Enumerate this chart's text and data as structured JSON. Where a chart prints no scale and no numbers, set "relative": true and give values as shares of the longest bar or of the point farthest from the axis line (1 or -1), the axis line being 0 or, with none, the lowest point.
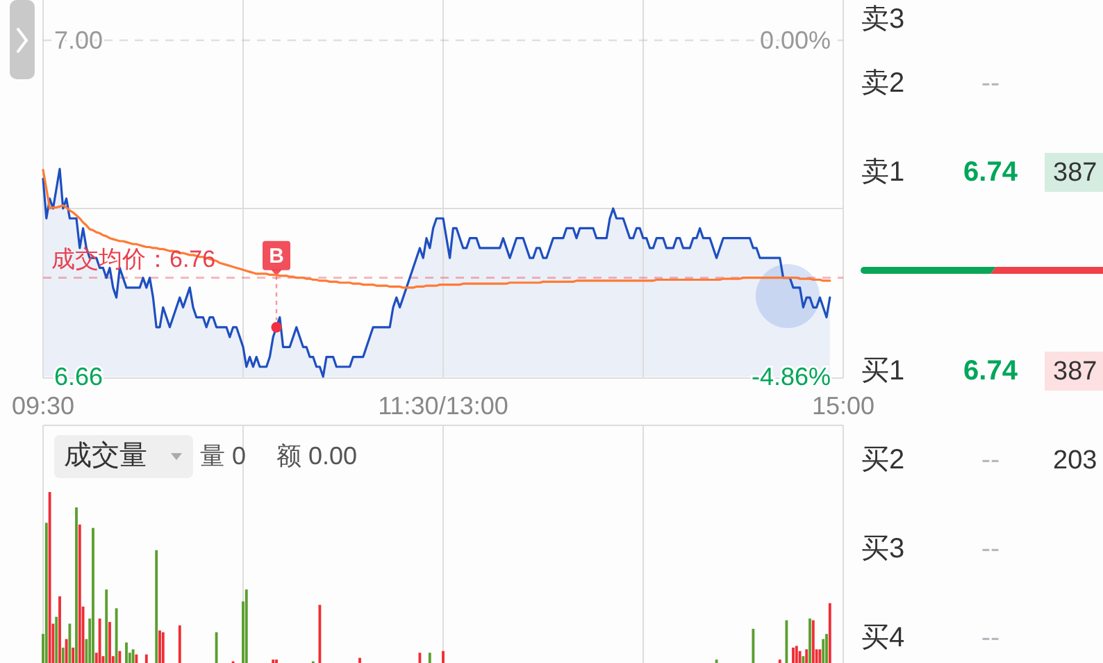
{
  "chart_data": [
    {
      "type": "line",
      "categories": [
        "09:30",
        null,
        null,
        null,
        null,
        null,
        null,
        null,
        null,
        null,
        null,
        null,
        null,
        null,
        null,
        null,
        null,
        null,
        null,
        null,
        null,
        null,
        null,
        null,
        null,
        null,
        null,
        null,
        null,
        null,
        null,
        null,
        null,
        null,
        null,
        null,
        null,
        null,
        null,
        null,
        null,
        null,
        null,
        null,
        null,
        null,
        null,
        null,
        null,
        null,
        null,
        null,
        null,
        null,
        null,
        null,
        null,
        null,
        null,
        null,
        null,
        null,
        null,
        null,
        null,
        null,
        null,
        null,
        null,
        null,
        null,
        null,
        null,
        null,
        null,
        null,
        null,
        null,
        null,
        null,
        null,
        null,
        null,
        null,
        null,
        null,
        null,
        null,
        null,
        null,
        null,
        null,
        null,
        null,
        null,
        null,
        null,
        null,
        null,
        null,
        null,
        null,
        null,
        null,
        null,
        null,
        null,
        null,
        null,
        null,
        null,
        null,
        null,
        null,
        null,
        null,
        null,
        null,
        null,
        null,
        "11:30/13:00",
        null,
        null,
        null,
        null,
        null,
        null,
        null,
        null,
        null,
        null,
        null,
        null,
        null,
        null,
        null,
        null,
        null,
        null,
        null,
        null,
        null,
        null,
        null,
        null,
        null,
        null,
        null,
        null,
        null,
        null,
        null,
        null,
        null,
        null,
        null,
        null,
        null,
        null,
        null,
        null,
        null,
        null,
        null,
        null,
        null,
        null,
        null,
        null,
        null,
        null,
        null,
        null,
        null,
        null,
        null,
        null,
        null,
        null,
        null,
        null,
        null,
        null,
        null,
        null,
        null,
        null,
        null,
        null,
        null,
        null,
        null,
        null,
        null,
        null,
        null,
        null,
        null,
        null,
        null,
        null,
        null,
        null,
        null,
        null,
        null,
        null,
        null,
        null,
        null,
        null,
        null,
        null,
        null,
        null,
        null,
        null,
        null,
        null,
        null,
        null,
        null,
        null,
        null,
        null,
        null,
        null,
        null,
        null,
        null,
        null,
        null,
        null,
        null,
        null,
        null,
        null,
        null,
        null,
        null,
        "15:00"
      ],
      "ylim": [
        6.66,
        7.0
      ],
      "yticks": [
        6.66,
        {
          "value": 6.83,
          "label": null
        },
        {
          "value": 7.0,
          "label": "7.00"
        }
      ],
      "y2lim": [
        -4.86,
        0
      ],
      "y2ticks": [
        {
          "value": -4.86,
          "label": "-4.86%"
        },
        {
          "value": 0,
          "label": "0.00%"
        }
      ],
      "grid": true,
      "ref_lines": [
        {
          "axis": "y",
          "value": 7.0,
          "color": "#a5b4c6",
          "line_style": "dashed"
        },
        {
          "axis": "y",
          "value": 6.76,
          "label": "成交均价：6.76",
          "color": "#e8404c",
          "line_style": "dashed"
        }
      ],
      "series": [
        {
          "type": "area",
          "color": "#1e4fc0",
          "values": [
            6.86,
            6.82,
            6.84,
            6.83,
            6.85,
            6.87,
            6.83,
            6.84,
            6.82,
            6.82,
            6.82,
            6.79,
            6.81,
            6.79,
            6.78,
            6.78,
            6.78,
            6.77,
            6.77,
            6.76,
            6.77,
            6.75,
            6.74,
            6.77,
            6.76,
            6.75,
            6.75,
            6.75,
            6.75,
            6.75,
            6.76,
            6.75,
            6.76,
            6.74,
            6.71,
            6.71,
            6.73,
            6.72,
            6.71,
            6.72,
            6.73,
            6.74,
            6.73,
            6.74,
            6.75,
            6.73,
            6.72,
            6.72,
            6.72,
            6.71,
            6.72,
            6.72,
            6.71,
            6.71,
            6.71,
            6.71,
            6.7,
            6.71,
            6.71,
            6.7,
            6.69,
            6.67,
            6.68,
            6.67,
            6.68,
            6.67,
            6.67,
            6.67,
            6.68,
            6.7,
            6.71,
            6.72,
            6.69,
            6.69,
            6.69,
            6.7,
            6.71,
            6.7,
            6.69,
            6.69,
            6.68,
            6.68,
            6.67,
            6.67,
            6.66,
            6.68,
            6.68,
            6.68,
            6.67,
            6.67,
            6.67,
            6.67,
            6.67,
            6.68,
            6.68,
            6.68,
            6.68,
            6.69,
            6.7,
            6.71,
            6.71,
            6.71,
            6.71,
            6.71,
            6.71,
            6.73,
            6.74,
            6.73,
            6.74,
            6.75,
            6.76,
            6.77,
            6.78,
            6.79,
            6.78,
            6.8,
            6.79,
            6.81,
            6.82,
            6.82,
            6.82,
            6.8,
            6.78,
            6.81,
            6.81,
            6.8,
            6.79,
            6.79,
            6.8,
            6.8,
            6.8,
            6.79,
            6.79,
            6.79,
            6.79,
            6.79,
            6.79,
            6.79,
            6.8,
            6.79,
            6.78,
            6.79,
            6.8,
            6.8,
            6.8,
            6.79,
            6.78,
            6.78,
            6.79,
            6.79,
            6.78,
            6.78,
            6.79,
            6.8,
            6.8,
            6.8,
            6.8,
            6.81,
            6.81,
            6.81,
            6.8,
            6.81,
            6.81,
            6.81,
            6.81,
            6.81,
            6.8,
            6.8,
            6.8,
            6.8,
            6.82,
            6.83,
            6.82,
            6.82,
            6.82,
            6.81,
            6.8,
            6.8,
            6.81,
            6.81,
            6.8,
            6.8,
            6.79,
            6.79,
            6.8,
            6.8,
            6.8,
            6.79,
            6.79,
            6.79,
            6.8,
            6.8,
            6.79,
            6.79,
            6.79,
            6.8,
            6.8,
            6.81,
            6.8,
            6.8,
            6.8,
            6.79,
            6.78,
            6.79,
            6.8,
            6.8,
            6.8,
            6.8,
            6.8,
            6.8,
            6.8,
            6.8,
            6.8,
            6.79,
            6.79,
            6.78,
            6.78,
            6.78,
            6.78,
            6.78,
            6.78,
            6.78,
            6.76,
            6.76,
            6.76,
            6.75,
            6.75,
            6.75,
            6.73,
            6.74,
            6.74,
            6.73,
            6.73,
            6.74,
            6.73,
            6.72,
            6.74,
            null,
            null,
            null,
            null
          ]
        },
        {
          "type": "line",
          "color": "#ff7a35",
          "values": [
            6.869,
            6.85,
            6.83,
            6.831,
            6.831,
            6.832,
            6.833,
            6.831,
            6.828,
            6.826,
            6.823,
            6.82,
            6.816,
            6.813,
            6.809,
            6.808,
            6.806,
            6.805,
            6.803,
            6.802,
            6.8,
            6.799,
            6.798,
            6.797,
            6.797,
            6.796,
            6.795,
            6.794,
            6.794,
            6.793,
            6.792,
            6.791,
            6.791,
            6.79,
            6.79,
            6.789,
            6.789,
            6.788,
            6.787,
            6.787,
            6.786,
            6.785,
            6.785,
            6.784,
            6.783,
            6.783,
            6.782,
            6.781,
            6.781,
            6.78,
            6.779,
            6.778,
            6.777,
            6.775,
            6.774,
            6.773,
            6.772,
            6.771,
            6.77,
            6.769,
            6.768,
            6.767,
            6.766,
            6.765,
            6.764,
            6.764,
            6.764,
            6.764,
            6.763,
            6.763,
            6.763,
            6.762,
            6.762,
            6.762,
            6.761,
            6.761,
            6.76,
            6.76,
            6.76,
            6.759,
            6.759,
            6.758,
            6.758,
            6.757,
            6.757,
            6.757,
            6.756,
            6.756,
            6.756,
            6.755,
            6.755,
            6.755,
            6.755,
            6.754,
            6.754,
            6.754,
            6.753,
            6.753,
            6.753,
            6.753,
            6.752,
            6.752,
            6.752,
            6.752,
            6.751,
            6.751,
            6.751,
            6.751,
            6.75,
            6.75,
            6.75,
            6.75,
            6.751,
            6.751,
            6.751,
            6.752,
            6.752,
            6.752,
            6.752,
            6.753,
            6.753,
            6.753,
            6.753,
            6.753,
            6.753,
            6.753,
            6.754,
            6.754,
            6.754,
            6.754,
            6.754,
            6.754,
            6.754,
            6.754,
            6.754,
            6.754,
            6.754,
            6.754,
            6.754,
            6.754,
            6.755,
            6.755,
            6.755,
            6.755,
            6.755,
            6.755,
            6.755,
            6.755,
            6.755,
            6.755,
            6.756,
            6.756,
            6.756,
            6.756,
            6.756,
            6.756,
            6.756,
            6.756,
            6.756,
            6.756,
            6.757,
            6.757,
            6.757,
            6.757,
            6.757,
            6.757,
            6.757,
            6.757,
            6.757,
            6.757,
            6.757,
            6.757,
            6.757,
            6.757,
            6.757,
            6.757,
            6.757,
            6.757,
            6.757,
            6.757,
            6.757,
            6.757,
            6.757,
            6.757,
            6.758,
            6.758,
            6.758,
            6.758,
            6.758,
            6.758,
            6.758,
            6.758,
            6.758,
            6.758,
            6.758,
            6.758,
            6.758,
            6.758,
            6.758,
            6.758,
            6.758,
            6.758,
            6.758,
            6.758,
            6.759,
            6.759,
            6.759,
            6.759,
            6.759,
            6.759,
            6.76,
            6.76,
            6.76,
            6.76,
            6.76,
            6.76,
            6.76,
            6.76,
            6.76,
            6.76,
            6.76,
            6.76,
            6.76,
            6.76,
            6.76,
            6.76,
            6.76,
            6.759,
            6.759,
            6.759,
            6.759,
            6.758,
            6.758,
            6.758,
            6.757,
            6.757,
            6.757,
            null,
            null,
            null,
            null
          ]
        },
        {
          "type": "scatter",
          "name": "B",
          "color": "#f0303f",
          "values": [
            null,
            null,
            null,
            null,
            null,
            null,
            null,
            null,
            null,
            null,
            null,
            null,
            null,
            null,
            null,
            null,
            null,
            null,
            null,
            null,
            null,
            null,
            null,
            null,
            null,
            null,
            null,
            null,
            null,
            null,
            null,
            null,
            null,
            null,
            null,
            null,
            null,
            null,
            null,
            null,
            null,
            null,
            null,
            null,
            null,
            null,
            null,
            null,
            null,
            null,
            null,
            null,
            null,
            null,
            null,
            null,
            null,
            null,
            null,
            null,
            null,
            null,
            null,
            null,
            null,
            null,
            null,
            null,
            null,
            null,
            6.71,
            null,
            null,
            null,
            null,
            null,
            null,
            null,
            null,
            null,
            null,
            null,
            null,
            null,
            null,
            null,
            null,
            null,
            null,
            null,
            null,
            null,
            null,
            null,
            null,
            null,
            null,
            null,
            null,
            null,
            null,
            null,
            null,
            null,
            null,
            null,
            null,
            null,
            null,
            null,
            null,
            null,
            null,
            null,
            null,
            null,
            null,
            null,
            null,
            null,
            null,
            null,
            null,
            null,
            null,
            null,
            null,
            null,
            null,
            null,
            null,
            null,
            null,
            null,
            null,
            null,
            null,
            null,
            null,
            null,
            null,
            null,
            null,
            null,
            null,
            null,
            null,
            null,
            null,
            null,
            null,
            null,
            null,
            null,
            null,
            null,
            null,
            null,
            null,
            null,
            null,
            null,
            null,
            null,
            null,
            null,
            null,
            null,
            null,
            null,
            null,
            null,
            null,
            null,
            null,
            null,
            null,
            null,
            null,
            null,
            null,
            null,
            null,
            null,
            null,
            null,
            null,
            null,
            null,
            null,
            null,
            null,
            null,
            null,
            null,
            null,
            null,
            null,
            null,
            null,
            null,
            null,
            null,
            null,
            null,
            null,
            null,
            null,
            null,
            null,
            null,
            null,
            null,
            null,
            null,
            null,
            null,
            null,
            null,
            null,
            null,
            null,
            null,
            null,
            null,
            null,
            null,
            null,
            null,
            null,
            null,
            null,
            null,
            null,
            null,
            null,
            null,
            null,
            null,
            null,
            null
          ]
        }
      ]
    },
    {
      "type": "bar",
      "title": "成交量",
      "annotations": [
        "量 0",
        "额 0.00"
      ],
      "relative": true,
      "categories": [
        null,
        null,
        null,
        null,
        null,
        null,
        null,
        null,
        null,
        null,
        null,
        null,
        null,
        null,
        null,
        null,
        null,
        null,
        null,
        null,
        null,
        null,
        null,
        null,
        null,
        null,
        null,
        null,
        null,
        null,
        null,
        null,
        null,
        null,
        null,
        null,
        null,
        null,
        null,
        null,
        null,
        null,
        null,
        null,
        null,
        null,
        null,
        null,
        null,
        null,
        null,
        null,
        null,
        null,
        null,
        null,
        null,
        null,
        null,
        null,
        null,
        null,
        null,
        null,
        null,
        null,
        null,
        null,
        null,
        null,
        null,
        null,
        null,
        null,
        null,
        null,
        null,
        null,
        null,
        null,
        null,
        null,
        null,
        null,
        null,
        null,
        null,
        null,
        null,
        null,
        null,
        null,
        null,
        null,
        null,
        null,
        null,
        null,
        null,
        null,
        null,
        null,
        null,
        null,
        null,
        null,
        null,
        null,
        null,
        null,
        null,
        null,
        null,
        null,
        null,
        null,
        null,
        null,
        null,
        null,
        null,
        null,
        null,
        null,
        null,
        null,
        null,
        null,
        null,
        null,
        null,
        null,
        null,
        null,
        null,
        null,
        null,
        null,
        null,
        null,
        null,
        null,
        null,
        null,
        null,
        null,
        null,
        null,
        null,
        null,
        null,
        null,
        null,
        null,
        null,
        null,
        null,
        null,
        null,
        null,
        null,
        null,
        null,
        null,
        null,
        null,
        null,
        null,
        null,
        null,
        null,
        null,
        null,
        null,
        null,
        null,
        null,
        null,
        null,
        null,
        null,
        null,
        null,
        null,
        null,
        null,
        null,
        null,
        null,
        null,
        null,
        null,
        null,
        null,
        null,
        null,
        null,
        null,
        null,
        null,
        null,
        null,
        null,
        null,
        null,
        null,
        null,
        null,
        null,
        null,
        null,
        null,
        null,
        null,
        null,
        null,
        null,
        null,
        null,
        null,
        null,
        null,
        null,
        null,
        null,
        null,
        null,
        null,
        null,
        null,
        null,
        null,
        null,
        null,
        null,
        null,
        null,
        null,
        null,
        null,
        null
      ],
      "values": [
        0.17,
        0.82,
        1.0,
        0.23,
        0.27,
        0.39,
        0.09,
        0.14,
        0.23,
        0.09,
        0.91,
        0.81,
        0.33,
        0.14,
        0.26,
        0.79,
        0.06,
        0.26,
        0.04,
        0.43,
        0.24,
        0.04,
        0.32,
        0.07,
        null,
        0.12,
        0.06,
        0.08,
        0.05,
        null,
        null,
        0.05,
        null,
        null,
        0.66,
        0.19,
        0.18,
        null,
        null,
        null,
        null,
        0.22,
        null,
        null,
        null,
        null,
        null,
        null,
        null,
        null,
        null,
        null,
        0.18,
        null,
        null,
        null,
        null,
        0.01,
        null,
        null,
        0.36,
        0.43,
        null,
        null,
        null,
        null,
        null,
        null,
        null,
        0.02,
        0.02,
        null,
        null,
        null,
        null,
        null,
        null,
        null,
        null,
        null,
        null,
        0.01,
        null,
        0.34,
        null,
        null,
        null,
        null,
        null,
        null,
        null,
        null,
        null,
        null,
        null,
        0.03,
        null,
        null,
        null,
        null,
        null,
        null,
        null,
        null,
        null,
        null,
        null,
        null,
        null,
        null,
        null,
        null,
        null,
        0.06,
        null,
        null,
        0.06,
        null,
        null,
        null,
        0.07,
        null,
        null,
        null,
        null,
        null,
        null,
        null,
        null,
        null,
        null,
        null,
        null,
        null,
        null,
        null,
        null,
        null,
        null,
        null,
        null,
        null,
        null,
        null,
        null,
        null,
        null,
        null,
        null,
        null,
        null,
        null,
        null,
        null,
        null,
        null,
        null,
        null,
        null,
        null,
        null,
        null,
        null,
        null,
        null,
        null,
        null,
        null,
        null,
        null,
        null,
        null,
        null,
        null,
        null,
        null,
        null,
        null,
        null,
        null,
        null,
        null,
        null,
        null,
        null,
        null,
        null,
        null,
        null,
        null,
        null,
        null,
        null,
        null,
        null,
        null,
        null,
        null,
        null,
        null,
        null,
        null,
        0.02,
        null,
        null,
        null,
        null,
        null,
        null,
        null,
        null,
        null,
        null,
        0.2,
        null,
        null,
        null,
        null,
        null,
        null,
        null,
        0.02,
        null,
        0.25,
        null,
        0.09,
        0.1,
        0.07,
        0.04,
        0.08,
        0.26,
        0.25,
        0.08,
        0.08,
        0.14,
        0.17,
        0.35,
        null,
        null,
        null,
        null
      ],
      "colors": [
        "#5c9e31",
        "#5c9e31",
        "#ee2e36",
        "#ee2e36",
        "#5c9e31",
        "#ee2e36",
        "#5c9e31",
        "#ee2e36",
        "#5c9e31",
        "#ee2e36",
        "#5c9e31",
        "#ee2e36",
        "#ee2e36",
        "#5c9e31",
        "#5c9e31",
        "#5c9e31",
        "#ee2e36",
        "#ee2e36",
        "#ee2e36",
        "#5c9e31",
        "#ee2e36",
        "#ee2e36",
        "#5c9e31",
        "#ee2e36",
        null,
        "#5c9e31",
        "#5c9e31",
        "#5c9e31",
        "#ee2e36",
        null,
        null,
        "#ee2e36",
        null,
        null,
        "#5c9e31",
        "#ee2e36",
        "#ee2e36",
        null,
        null,
        null,
        null,
        "#ee2e36",
        null,
        null,
        null,
        null,
        null,
        null,
        null,
        null,
        null,
        null,
        "#5c9e31",
        null,
        null,
        null,
        null,
        "#ee2e36",
        null,
        null,
        "#5c9e31",
        "#5c9e31",
        null,
        null,
        null,
        null,
        null,
        null,
        null,
        "#ee2e36",
        "#ee2e36",
        null,
        null,
        null,
        null,
        null,
        null,
        null,
        null,
        null,
        null,
        "#5c9e31",
        null,
        "#ee2e36",
        null,
        null,
        null,
        null,
        null,
        null,
        null,
        null,
        null,
        null,
        null,
        "#ee2e36",
        null,
        null,
        null,
        null,
        null,
        null,
        null,
        null,
        null,
        null,
        null,
        null,
        null,
        null,
        null,
        null,
        null,
        "#ee2e36",
        null,
        null,
        "#5c9e31",
        null,
        null,
        null,
        "#ee2e36",
        null,
        null,
        null,
        null,
        null,
        null,
        null,
        null,
        null,
        null,
        null,
        null,
        null,
        null,
        null,
        null,
        null,
        null,
        null,
        null,
        null,
        null,
        null,
        null,
        null,
        null,
        null,
        null,
        null,
        null,
        null,
        null,
        null,
        null,
        null,
        null,
        null,
        null,
        null,
        null,
        null,
        null,
        null,
        null,
        null,
        null,
        null,
        null,
        null,
        null,
        null,
        null,
        null,
        null,
        null,
        null,
        null,
        null,
        null,
        null,
        null,
        null,
        null,
        null,
        null,
        null,
        null,
        null,
        null,
        null,
        null,
        null,
        null,
        null,
        null,
        null,
        null,
        null,
        null,
        null,
        null,
        "#5c9e31",
        null,
        null,
        null,
        null,
        null,
        null,
        null,
        null,
        null,
        null,
        "#5c9e31",
        null,
        null,
        null,
        null,
        null,
        null,
        null,
        "#ee2e36",
        null,
        "#5c9e31",
        null,
        "#ee2e36",
        "#ee2e36",
        "#ee2e36",
        "#5c9e31",
        "#ee2e36",
        "#5c9e31",
        "#ee2e36",
        "#ee2e36",
        "#ee2e36",
        "#5c9e31",
        "#5c9e31",
        "#ee2e36",
        null,
        null,
        null,
        null
      ]
    },
    {
      "type": "other",
      "categories": [
        "卖3",
        "卖2",
        "卖1",
        "买1",
        "买2",
        "买3",
        "买4"
      ],
      "series": [
        {
          "color": "#00a65a",
          "values": [
            null,
            null,
            6.74,
            6.74,
            null,
            null,
            null
          ],
          "value_labels": [
            null,
            "--",
            "6.74",
            "6.74",
            "--",
            "--",
            "--"
          ]
        },
        {
          "colors": [
            null,
            null,
            "#d5ede1",
            "#fde0e2",
            null,
            null,
            null
          ],
          "values": [
            null,
            null,
            387,
            387,
            203,
            null,
            null
          ],
          "value_labels": [
            null,
            null,
            "387",
            "387",
            "203",
            null,
            null
          ]
        }
      ]
    }
  ]
}
